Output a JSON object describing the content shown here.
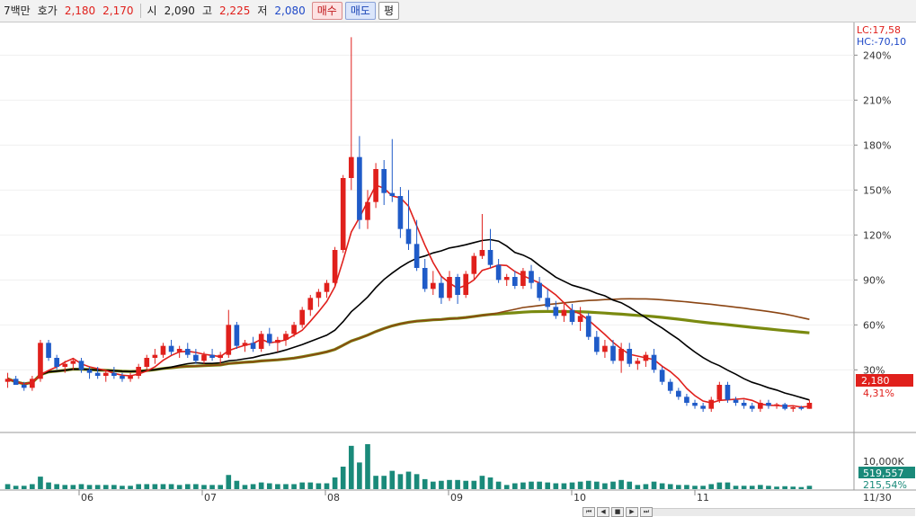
{
  "header": {
    "volume_label": "7백만",
    "quote_label": "호가",
    "ask": "2,180",
    "bid": "2,170",
    "open_label": "시",
    "open": "2,090",
    "high_label": "고",
    "high": "2,225",
    "low_label": "저",
    "low": "2,080",
    "buy_label": "매수",
    "sell_label": "매도",
    "eval_label": "평"
  },
  "price_info": {
    "lc": "LC:17,58",
    "hc": "HC:-70,10",
    "current_price": "2,180",
    "current_pct": "4,31%"
  },
  "volume_info": {
    "scale": "10,000K",
    "current": "519,557",
    "pct": "215,54%"
  },
  "colors": {
    "up": "#e0201c",
    "down": "#1f5bc8",
    "ma5": "#e0201c",
    "ma20": "#000000",
    "ma60": "#8b4513",
    "ma120": "#7a8a10",
    "volume": "#1a8a7a",
    "price_tag": "#e0201c",
    "volume_tag": "#1a8a7a"
  },
  "chart_data": {
    "type": "candlestick",
    "y_axis_unit": "%",
    "y_ticks": [
      "30%",
      "60%",
      "90%",
      "120%",
      "150%",
      "180%",
      "210%",
      "240%"
    ],
    "x_tick_labels": [
      "06",
      "07",
      "08",
      "09",
      "10",
      "11"
    ],
    "x_end_label": "11/30",
    "ylim": [
      -10,
      260
    ],
    "candles": [
      [
        22,
        28,
        18,
        24
      ],
      [
        24,
        26,
        20,
        20
      ],
      [
        20,
        22,
        16,
        18
      ],
      [
        18,
        26,
        16,
        24
      ],
      [
        24,
        50,
        22,
        48
      ],
      [
        48,
        50,
        36,
        38
      ],
      [
        38,
        40,
        30,
        32
      ],
      [
        32,
        36,
        28,
        34
      ],
      [
        34,
        38,
        30,
        36
      ],
      [
        36,
        38,
        28,
        30
      ],
      [
        30,
        32,
        24,
        28
      ],
      [
        28,
        32,
        24,
        26
      ],
      [
        26,
        30,
        22,
        28
      ],
      [
        28,
        32,
        24,
        26
      ],
      [
        26,
        28,
        22,
        24
      ],
      [
        24,
        28,
        22,
        26
      ],
      [
        26,
        34,
        24,
        32
      ],
      [
        32,
        40,
        30,
        38
      ],
      [
        38,
        44,
        34,
        40
      ],
      [
        40,
        48,
        38,
        46
      ],
      [
        46,
        50,
        40,
        42
      ],
      [
        42,
        46,
        38,
        44
      ],
      [
        44,
        48,
        38,
        40
      ],
      [
        40,
        44,
        34,
        36
      ],
      [
        36,
        42,
        34,
        40
      ],
      [
        40,
        44,
        36,
        38
      ],
      [
        38,
        42,
        34,
        40
      ],
      [
        40,
        70,
        38,
        60
      ],
      [
        60,
        62,
        44,
        46
      ],
      [
        46,
        50,
        42,
        48
      ],
      [
        48,
        52,
        42,
        44
      ],
      [
        44,
        56,
        42,
        54
      ],
      [
        54,
        58,
        46,
        48
      ],
      [
        48,
        52,
        42,
        50
      ],
      [
        50,
        56,
        46,
        54
      ],
      [
        54,
        62,
        52,
        60
      ],
      [
        60,
        72,
        58,
        70
      ],
      [
        70,
        80,
        66,
        78
      ],
      [
        78,
        84,
        72,
        82
      ],
      [
        82,
        90,
        78,
        88
      ],
      [
        88,
        112,
        86,
        110
      ],
      [
        110,
        160,
        108,
        158
      ],
      [
        158,
        252,
        150,
        172
      ],
      [
        172,
        186,
        124,
        130
      ],
      [
        130,
        150,
        124,
        142
      ],
      [
        142,
        168,
        138,
        164
      ],
      [
        164,
        170,
        140,
        148
      ],
      [
        148,
        184,
        142,
        146
      ],
      [
        146,
        152,
        118,
        124
      ],
      [
        124,
        150,
        110,
        114
      ],
      [
        114,
        130,
        96,
        98
      ],
      [
        98,
        104,
        82,
        84
      ],
      [
        84,
        96,
        80,
        88
      ],
      [
        88,
        92,
        74,
        78
      ],
      [
        78,
        96,
        76,
        92
      ],
      [
        92,
        94,
        74,
        80
      ],
      [
        80,
        96,
        78,
        94
      ],
      [
        94,
        108,
        90,
        106
      ],
      [
        106,
        134,
        104,
        110
      ],
      [
        110,
        124,
        98,
        100
      ],
      [
        100,
        104,
        88,
        90
      ],
      [
        90,
        94,
        86,
        92
      ],
      [
        92,
        96,
        84,
        86
      ],
      [
        86,
        98,
        84,
        96
      ],
      [
        96,
        100,
        84,
        88
      ],
      [
        88,
        92,
        76,
        78
      ],
      [
        78,
        84,
        70,
        72
      ],
      [
        72,
        76,
        64,
        66
      ],
      [
        66,
        74,
        62,
        70
      ],
      [
        70,
        74,
        60,
        62
      ],
      [
        62,
        72,
        56,
        66
      ],
      [
        66,
        68,
        50,
        52
      ],
      [
        52,
        56,
        40,
        42
      ],
      [
        42,
        50,
        38,
        46
      ],
      [
        46,
        50,
        34,
        36
      ],
      [
        36,
        48,
        28,
        44
      ],
      [
        44,
        48,
        32,
        34
      ],
      [
        34,
        38,
        30,
        36
      ],
      [
        36,
        42,
        32,
        40
      ],
      [
        40,
        44,
        28,
        30
      ],
      [
        30,
        32,
        20,
        22
      ],
      [
        22,
        24,
        14,
        16
      ],
      [
        16,
        18,
        10,
        12
      ],
      [
        12,
        14,
        6,
        8
      ],
      [
        8,
        10,
        4,
        6
      ],
      [
        6,
        8,
        2,
        4
      ],
      [
        4,
        12,
        2,
        10
      ],
      [
        10,
        22,
        8,
        20
      ],
      [
        20,
        22,
        8,
        10
      ],
      [
        10,
        12,
        6,
        8
      ],
      [
        8,
        10,
        4,
        6
      ],
      [
        6,
        8,
        2,
        4
      ],
      [
        4,
        10,
        2,
        8
      ],
      [
        8,
        10,
        4,
        6
      ],
      [
        6,
        8,
        4,
        7
      ],
      [
        7,
        8,
        3,
        4
      ],
      [
        4,
        6,
        2,
        5
      ],
      [
        5,
        6,
        3,
        4
      ],
      [
        4,
        10,
        4,
        8
      ]
    ],
    "volume_peak_index": 44
  }
}
